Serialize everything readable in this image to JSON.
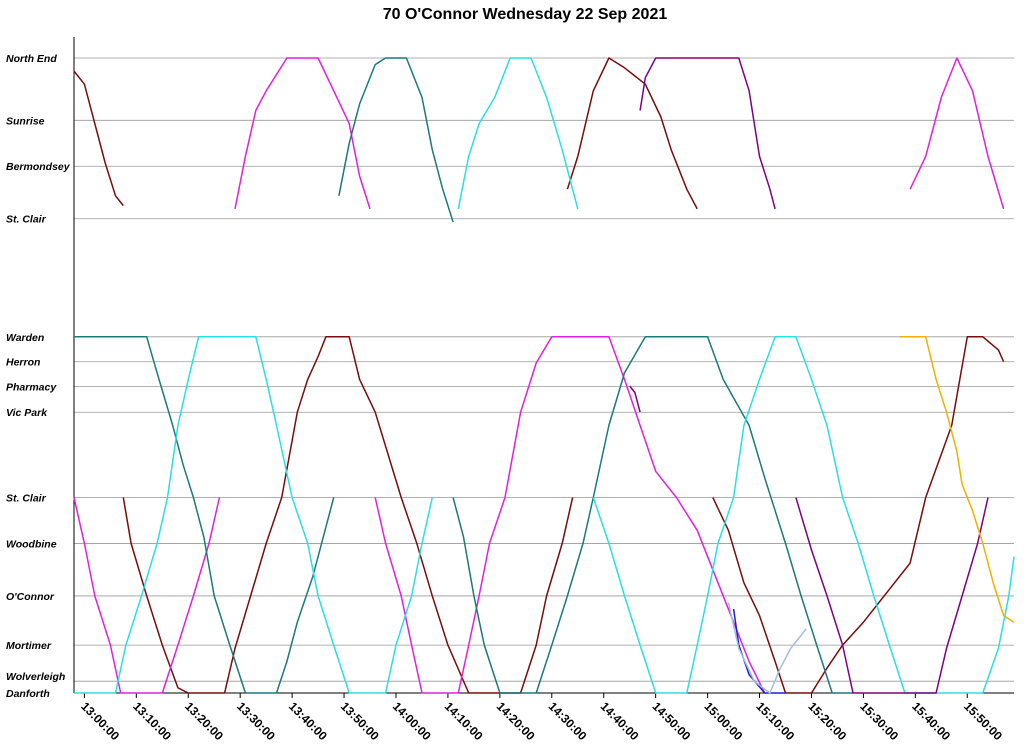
{
  "chart_data": {
    "type": "line",
    "title": "70 O'Connor Wednesday 22 Sep 2021",
    "xlabel": "",
    "ylabel": "",
    "x_range": [
      "12:58:00",
      "15:59:00"
    ],
    "x_ticks": [
      "13:00:00",
      "13:10:00",
      "13:20:00",
      "13:30:00",
      "13:40:00",
      "13:50:00",
      "14:00:00",
      "14:10:00",
      "14:20:00",
      "14:30:00",
      "14:40:00",
      "14:50:00",
      "15:00:00",
      "15:10:00",
      "15:20:00",
      "15:30:00",
      "15:40:00",
      "15:50:00"
    ],
    "stops": [
      {
        "name": "North End",
        "pos": 0.0
      },
      {
        "name": "Sunrise",
        "pos": 0.95
      },
      {
        "name": "Bermondsey",
        "pos": 1.65
      },
      {
        "name": "St. Clair",
        "pos": 2.45
      },
      {
        "name": "Warden",
        "pos": 4.25
      },
      {
        "name": "Herron",
        "pos": 4.63
      },
      {
        "name": "Pharmacy",
        "pos": 5.01
      },
      {
        "name": "Vic Park",
        "pos": 5.4
      },
      {
        "name": "St. Clair",
        "pos": 6.7
      },
      {
        "name": "Woodbine",
        "pos": 7.4
      },
      {
        "name": "O'Connor",
        "pos": 8.2
      },
      {
        "name": "Mortimer",
        "pos": 8.95
      },
      {
        "name": "Wolverleigh",
        "pos": 9.5
      },
      {
        "name": "Danforth",
        "pos": 9.68
      }
    ],
    "series": [
      {
        "name": "trip-maroon-1",
        "color": "#7a0c0c",
        "points": [
          [
            0,
            0.2
          ],
          [
            2,
            0.4
          ],
          [
            4,
            1.0
          ],
          [
            6,
            1.6
          ],
          [
            8,
            2.1
          ],
          [
            9.5,
            2.25
          ]
        ]
      },
      {
        "name": "trip-maroon-2",
        "color": "#7a0c0c",
        "points": [
          [
            9.5,
            6.7
          ],
          [
            11,
            7.4
          ],
          [
            14,
            8.2
          ],
          [
            17,
            8.95
          ],
          [
            20,
            9.6
          ],
          [
            22,
            9.68
          ],
          [
            29,
            9.68
          ],
          [
            31,
            9.0
          ],
          [
            34,
            8.2
          ],
          [
            37,
            7.4
          ],
          [
            40,
            6.7
          ],
          [
            43,
            5.4
          ],
          [
            45,
            4.9
          ],
          [
            47,
            4.55
          ],
          [
            48.5,
            4.25
          ],
          [
            53,
            4.25
          ],
          [
            55,
            4.9
          ],
          [
            58,
            5.4
          ],
          [
            63,
            6.7
          ],
          [
            66,
            7.4
          ],
          [
            69,
            8.2
          ],
          [
            72,
            8.95
          ],
          [
            76,
            9.68
          ],
          [
            86,
            9.68
          ],
          [
            89,
            8.95
          ],
          [
            91,
            8.2
          ],
          [
            94,
            7.4
          ],
          [
            96,
            6.7
          ]
        ]
      },
      {
        "name": "trip-maroon-3",
        "color": "#7a0c0c",
        "points": [
          [
            95,
            2.0
          ],
          [
            97,
            1.5
          ],
          [
            100,
            0.5
          ],
          [
            103,
            0.0
          ],
          [
            106,
            0.15
          ],
          [
            110,
            0.4
          ],
          [
            113,
            0.9
          ],
          [
            115,
            1.4
          ],
          [
            118,
            2.0
          ],
          [
            120,
            2.3
          ]
        ]
      },
      {
        "name": "trip-maroon-4",
        "color": "#7a0c0c",
        "points": [
          [
            123,
            6.7
          ],
          [
            126,
            7.2
          ],
          [
            129,
            8.0
          ],
          [
            132,
            8.5
          ],
          [
            135,
            9.2
          ],
          [
            137,
            9.68
          ],
          [
            142,
            9.68
          ],
          [
            145,
            9.3
          ],
          [
            148,
            8.95
          ],
          [
            152,
            8.6
          ],
          [
            156,
            8.2
          ],
          [
            161,
            7.7
          ],
          [
            164,
            6.7
          ],
          [
            169,
            5.6
          ],
          [
            172,
            4.25
          ],
          [
            175,
            4.25
          ],
          [
            178,
            4.45
          ],
          [
            179,
            4.63
          ]
        ]
      },
      {
        "name": "trip-magenta-1",
        "color": "#e020e0",
        "points": [
          [
            0,
            6.7
          ],
          [
            2,
            7.4
          ],
          [
            4,
            8.2
          ],
          [
            7,
            8.95
          ],
          [
            9,
            9.68
          ],
          [
            17,
            9.68
          ],
          [
            20,
            8.95
          ],
          [
            23,
            8.2
          ],
          [
            26,
            7.4
          ],
          [
            28,
            6.7
          ]
        ]
      },
      {
        "name": "trip-magenta-2",
        "color": "#e020e0",
        "points": [
          [
            31,
            2.3
          ],
          [
            33,
            1.5
          ],
          [
            35,
            0.8
          ],
          [
            37,
            0.5
          ],
          [
            41,
            0.0
          ],
          [
            47,
            0.0
          ],
          [
            50,
            0.5
          ],
          [
            53,
            1.0
          ],
          [
            55,
            1.8
          ],
          [
            57,
            2.3
          ]
        ]
      },
      {
        "name": "trip-magenta-3",
        "color": "#e020e0",
        "points": [
          [
            58,
            6.7
          ],
          [
            60,
            7.4
          ],
          [
            63,
            8.2
          ],
          [
            65,
            8.95
          ],
          [
            67,
            9.68
          ],
          [
            74,
            9.68
          ],
          [
            76,
            8.95
          ],
          [
            78,
            8.2
          ],
          [
            80,
            7.4
          ],
          [
            83,
            6.7
          ],
          [
            86,
            5.4
          ],
          [
            89,
            4.65
          ],
          [
            92,
            4.25
          ],
          [
            103,
            4.25
          ],
          [
            106,
            4.9
          ],
          [
            109,
            5.6
          ],
          [
            112,
            6.3
          ],
          [
            116,
            6.7
          ],
          [
            120,
            7.2
          ],
          [
            124,
            8.0
          ],
          [
            127,
            8.6
          ],
          [
            130,
            9.2
          ],
          [
            133,
            9.68
          ]
        ]
      },
      {
        "name": "trip-magenta-4",
        "color": "#e020e0",
        "points": [
          [
            161,
            2.0
          ],
          [
            164,
            1.5
          ],
          [
            167,
            0.6
          ],
          [
            170,
            0.0
          ],
          [
            173,
            0.5
          ],
          [
            176,
            1.5
          ],
          [
            179,
            2.3
          ]
        ]
      },
      {
        "name": "trip-teal-1",
        "color": "#1a7a7a",
        "points": [
          [
            0,
            4.25
          ],
          [
            12,
            4.25
          ],
          [
            14,
            4.25
          ],
          [
            16,
            4.8
          ],
          [
            19,
            5.6
          ],
          [
            21,
            6.2
          ],
          [
            23,
            6.7
          ],
          [
            25,
            7.3
          ],
          [
            27,
            8.2
          ],
          [
            30,
            8.95
          ],
          [
            33,
            9.68
          ],
          [
            39,
            9.68
          ],
          [
            41,
            9.2
          ],
          [
            43,
            8.6
          ],
          [
            46,
            7.9
          ],
          [
            48,
            7.3
          ],
          [
            50,
            6.7
          ]
        ]
      },
      {
        "name": "trip-teal-2",
        "color": "#1a7a7a",
        "points": [
          [
            51,
            2.1
          ],
          [
            53,
            1.3
          ],
          [
            55,
            0.7
          ],
          [
            58,
            0.1
          ],
          [
            60,
            0.0
          ],
          [
            64,
            0.0
          ],
          [
            67,
            0.6
          ],
          [
            69,
            1.4
          ],
          [
            71,
            2.0
          ],
          [
            73,
            2.5
          ]
        ]
      },
      {
        "name": "trip-teal-3",
        "color": "#1a7a7a",
        "points": [
          [
            73,
            6.7
          ],
          [
            75,
            7.3
          ],
          [
            77,
            8.2
          ],
          [
            79,
            8.95
          ],
          [
            82,
            9.68
          ],
          [
            89,
            9.68
          ],
          [
            92,
            8.95
          ],
          [
            95,
            8.2
          ],
          [
            98,
            7.4
          ],
          [
            100,
            6.7
          ],
          [
            103,
            5.6
          ],
          [
            106,
            4.8
          ],
          [
            110,
            4.25
          ],
          [
            122,
            4.25
          ],
          [
            125,
            4.9
          ],
          [
            130,
            5.6
          ],
          [
            133,
            6.4
          ],
          [
            137,
            7.4
          ],
          [
            140,
            8.2
          ],
          [
            143,
            8.95
          ],
          [
            146,
            9.68
          ],
          [
            150,
            9.68
          ]
        ]
      },
      {
        "name": "trip-cyan-1",
        "color": "#28e0e0",
        "points": [
          [
            0,
            9.68
          ],
          [
            8,
            9.68
          ],
          [
            10,
            8.95
          ],
          [
            13,
            8.2
          ],
          [
            16,
            7.4
          ],
          [
            18,
            6.7
          ],
          [
            20,
            5.6
          ],
          [
            22,
            4.9
          ],
          [
            24,
            4.25
          ],
          [
            30,
            4.25
          ],
          [
            35,
            4.25
          ],
          [
            37,
            4.9
          ],
          [
            39,
            5.6
          ],
          [
            42,
            6.7
          ],
          [
            45,
            7.4
          ],
          [
            47,
            8.2
          ],
          [
            50,
            8.95
          ],
          [
            53,
            9.68
          ],
          [
            60,
            9.68
          ],
          [
            62,
            8.95
          ],
          [
            65,
            8.2
          ],
          [
            67,
            7.4
          ],
          [
            69,
            6.7
          ]
        ]
      },
      {
        "name": "trip-cyan-2",
        "color": "#28e0e0",
        "points": [
          [
            74,
            2.3
          ],
          [
            76,
            1.5
          ],
          [
            78,
            1.0
          ],
          [
            81,
            0.6
          ],
          [
            84,
            0.0
          ],
          [
            88,
            0.0
          ],
          [
            91,
            0.6
          ],
          [
            94,
            1.4
          ],
          [
            96,
            2.0
          ],
          [
            97,
            2.3
          ]
        ]
      },
      {
        "name": "trip-cyan-3",
        "color": "#28e0e0",
        "points": [
          [
            100,
            6.7
          ],
          [
            103,
            7.4
          ],
          [
            106,
            8.2
          ],
          [
            109,
            8.95
          ],
          [
            112,
            9.68
          ],
          [
            118,
            9.68
          ],
          [
            120,
            8.95
          ],
          [
            122,
            8.2
          ],
          [
            124,
            7.4
          ],
          [
            127,
            6.7
          ],
          [
            129,
            5.6
          ],
          [
            132,
            4.9
          ],
          [
            135,
            4.25
          ],
          [
            139,
            4.25
          ],
          [
            142,
            4.9
          ],
          [
            145,
            5.6
          ],
          [
            148,
            6.7
          ],
          [
            151,
            7.4
          ],
          [
            154,
            8.2
          ],
          [
            157,
            8.95
          ],
          [
            160,
            9.68
          ],
          [
            170,
            9.68
          ],
          [
            175,
            9.68
          ],
          [
            178,
            9.0
          ],
          [
            180,
            8.2
          ],
          [
            181,
            7.6
          ]
        ]
      },
      {
        "name": "trip-purple-1",
        "color": "#800080",
        "points": [
          [
            109,
            0.8
          ],
          [
            110,
            0.3
          ],
          [
            112,
            0.0
          ],
          [
            128,
            0.0
          ],
          [
            130,
            0.5
          ],
          [
            132,
            1.5
          ],
          [
            134,
            2.0
          ],
          [
            135,
            2.3
          ]
        ]
      },
      {
        "name": "trip-purple-2",
        "color": "#800080",
        "points": [
          [
            139,
            6.7
          ],
          [
            142,
            7.5
          ],
          [
            145,
            8.2
          ],
          [
            148,
            8.95
          ],
          [
            150,
            9.68
          ],
          [
            160,
            9.68
          ],
          [
            166,
            9.68
          ],
          [
            168,
            9.0
          ],
          [
            171,
            8.2
          ],
          [
            174,
            7.4
          ],
          [
            176,
            6.7
          ]
        ]
      },
      {
        "name": "trip-purple-3",
        "color": "#800080",
        "points": [
          [
            107,
            5.0
          ],
          [
            108,
            5.1
          ],
          [
            109,
            5.4
          ]
        ]
      },
      {
        "name": "trip-orange-1",
        "color": "#f0b000",
        "points": [
          [
            159,
            4.25
          ],
          [
            164,
            4.25
          ],
          [
            166,
            4.9
          ],
          [
            168,
            5.4
          ],
          [
            170,
            6.0
          ],
          [
            171,
            6.5
          ],
          [
            173,
            6.9
          ],
          [
            175,
            7.4
          ],
          [
            177,
            8.0
          ],
          [
            179,
            8.5
          ],
          [
            181,
            8.6
          ]
        ]
      },
      {
        "name": "trip-blue-1",
        "color": "#2020d0",
        "points": [
          [
            127,
            8.4
          ],
          [
            128,
            8.95
          ],
          [
            130,
            9.4
          ],
          [
            133,
            9.68
          ],
          [
            137,
            9.68
          ]
        ]
      },
      {
        "name": "trip-lightblue-1",
        "color": "#a0c0e0",
        "points": [
          [
            126,
            8.3
          ],
          [
            128,
            9.0
          ],
          [
            131,
            9.5
          ],
          [
            134,
            9.68
          ],
          [
            136,
            9.3
          ],
          [
            138,
            9.0
          ],
          [
            141,
            8.7
          ]
        ]
      }
    ]
  }
}
